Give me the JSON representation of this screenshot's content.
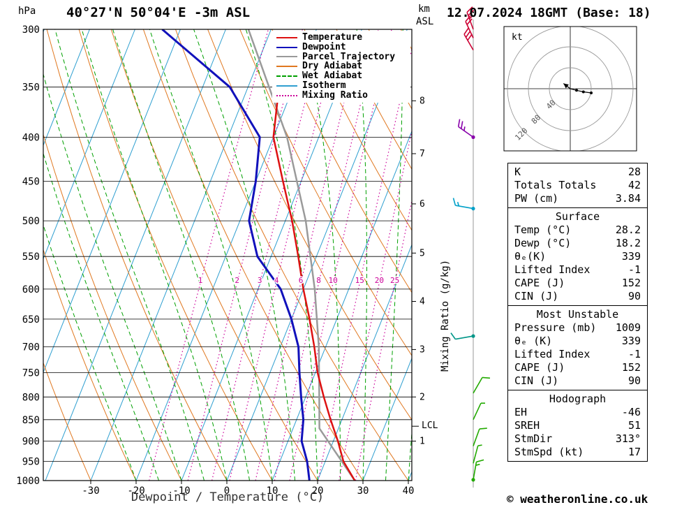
{
  "header": {
    "pressure_unit": "hPa",
    "title": "40°27'N 50°04'E -3m ASL",
    "altitude_unit": "km",
    "altitude_unit2": "ASL",
    "datetime": "12.07.2024 18GMT (Base: 18)"
  },
  "legend": [
    {
      "label": "Temperature",
      "color": "#dd1111",
      "style": "solid"
    },
    {
      "label": "Dewpoint",
      "color": "#1111bb",
      "style": "solid"
    },
    {
      "label": "Parcel Trajectory",
      "color": "#9a9a9a",
      "style": "solid"
    },
    {
      "label": "Dry Adiabat",
      "color": "#e07820",
      "style": "solid"
    },
    {
      "label": "Wet Adiabat",
      "color": "#00a000",
      "style": "dashed"
    },
    {
      "label": "Isotherm",
      "color": "#2f9fd0",
      "style": "solid"
    },
    {
      "label": "Mixing Ratio",
      "color": "#cc0099",
      "style": "dotted"
    }
  ],
  "axes": {
    "pressure_ticks": [
      300,
      350,
      400,
      450,
      500,
      550,
      600,
      650,
      700,
      750,
      800,
      850,
      900,
      950,
      1000
    ],
    "temp_ticks": [
      -30,
      -20,
      -10,
      0,
      10,
      20,
      30,
      40
    ],
    "xlabel": "Dewpoint / Temperature (°C)",
    "km_ticks": [
      1,
      2,
      3,
      4,
      5,
      6,
      7,
      8
    ],
    "mixing_ratio_label": "Mixing Ratio (g/kg)",
    "mixing_ratio_values": [
      1,
      2,
      3,
      4,
      6,
      8,
      10,
      15,
      20,
      25
    ],
    "lcl_label": "LCL"
  },
  "hodograph": {
    "unit": "kt",
    "rings": [
      40,
      80,
      120
    ]
  },
  "stats": {
    "sections": [
      {
        "header": null,
        "rows": [
          [
            "K",
            "28"
          ],
          [
            "Totals Totals",
            "42"
          ],
          [
            "PW (cm)",
            "3.84"
          ]
        ]
      },
      {
        "header": "Surface",
        "rows": [
          [
            "Temp (°C)",
            "28.2"
          ],
          [
            "Dewp (°C)",
            "18.2"
          ],
          [
            "θₑ(K)",
            "339"
          ],
          [
            "Lifted Index",
            "-1"
          ],
          [
            "CAPE (J)",
            "152"
          ],
          [
            "CIN (J)",
            "90"
          ]
        ]
      },
      {
        "header": "Most Unstable",
        "rows": [
          [
            "Pressure (mb)",
            "1009"
          ],
          [
            "θₑ (K)",
            "339"
          ],
          [
            "Lifted Index",
            "-1"
          ],
          [
            "CAPE (J)",
            "152"
          ],
          [
            "CIN (J)",
            "90"
          ]
        ]
      },
      {
        "header": "Hodograph",
        "rows": [
          [
            "EH",
            "-46"
          ],
          [
            "SREH",
            "51"
          ],
          [
            "StmDir",
            "313°"
          ],
          [
            "StmSpd (kt)",
            "17"
          ]
        ]
      }
    ]
  },
  "footer": "© weatheronline.co.uk",
  "chart_data": {
    "type": "line",
    "title": "Skew-T log-P sounding 40°27'N 50°04'E 12.07.2024 18GMT",
    "xlabel": "Dewpoint / Temperature (°C)",
    "xlim": [
      -40,
      40
    ],
    "pressure_lim": [
      1000,
      300
    ],
    "colors": {
      "temperature": "#dd1111",
      "dewpoint": "#1111bb",
      "parcel": "#9a9a9a",
      "dry_adiabat": "#e07820",
      "wet_adiabat": "#00a000",
      "isotherm": "#2f9fd0",
      "mixing_ratio": "#cc0099",
      "isobar": "#000000"
    },
    "pressure_hPa": [
      1000,
      950,
      900,
      850,
      800,
      750,
      700,
      650,
      600,
      550,
      500,
      450,
      400,
      360
    ],
    "temperature_C": [
      28.2,
      24,
      21,
      17.5,
      14,
      10.5,
      7.5,
      4,
      0,
      -4,
      -8.5,
      -14,
      -20,
      -22.5
    ],
    "dewpoint_pressure_hPa": [
      1000,
      950,
      900,
      850,
      800,
      750,
      700,
      650,
      600,
      550,
      500,
      450,
      400,
      350,
      300
    ],
    "dewpoint_C": [
      18.2,
      16,
      13,
      11.5,
      9,
      6.5,
      4,
      0,
      -5,
      -13,
      -18,
      -20,
      -23,
      -34,
      -54
    ],
    "parcel_pressure_hPa": [
      1000,
      870,
      800,
      700,
      600,
      500,
      400,
      300
    ],
    "parcel_C": [
      28.2,
      15.8,
      13,
      8.5,
      2.5,
      -5.5,
      -17,
      -35
    ],
    "lcl_hPa": 865,
    "km_asl_pressures": {
      "1": 900,
      "2": 800,
      "3": 705,
      "4": 620,
      "5": 545,
      "6": 478,
      "7": 418,
      "8": 363
    },
    "wind_barbs": [
      {
        "p": 300,
        "color": "#cc0033",
        "angle": 340,
        "full": 2,
        "half": 1,
        "dot": false
      },
      {
        "p": 307,
        "color": "#cc0033",
        "angle": 335,
        "full": 2,
        "half": 0,
        "dot": false
      },
      {
        "p": 317,
        "color": "#cc0033",
        "angle": 330,
        "full": 3,
        "half": 0,
        "dot": false
      },
      {
        "p": 400,
        "color": "#8800aa",
        "angle": 305,
        "full": 2,
        "half": 1,
        "dot": true
      },
      {
        "p": 484,
        "color": "#00a0c8",
        "angle": 280,
        "full": 1,
        "half": 1,
        "dot": true
      },
      {
        "p": 680,
        "color": "#009688",
        "angle": 260,
        "full": 1,
        "half": 0,
        "dot": true
      },
      {
        "p": 792,
        "color": "#22aa00",
        "angle": 30,
        "full": 1,
        "half": 0,
        "dot": false
      },
      {
        "p": 850,
        "color": "#22aa00",
        "angle": 25,
        "full": 0,
        "half": 1,
        "dot": false
      },
      {
        "p": 912,
        "color": "#22aa00",
        "angle": 20,
        "full": 1,
        "half": 0,
        "dot": false
      },
      {
        "p": 955,
        "color": "#22aa00",
        "angle": 15,
        "full": 0,
        "half": 1,
        "dot": false
      },
      {
        "p": 998,
        "color": "#22aa00",
        "angle": 10,
        "full": 1,
        "half": 1,
        "dot": true
      }
    ],
    "hodograph": {
      "rings_kt": [
        40,
        80,
        120
      ],
      "trace_kt": [
        [
          0,
          0
        ],
        [
          12,
          -3
        ],
        [
          25,
          -6
        ],
        [
          40,
          -8
        ]
      ],
      "storm_arrow_kt": [
        -13,
        10
      ]
    }
  }
}
